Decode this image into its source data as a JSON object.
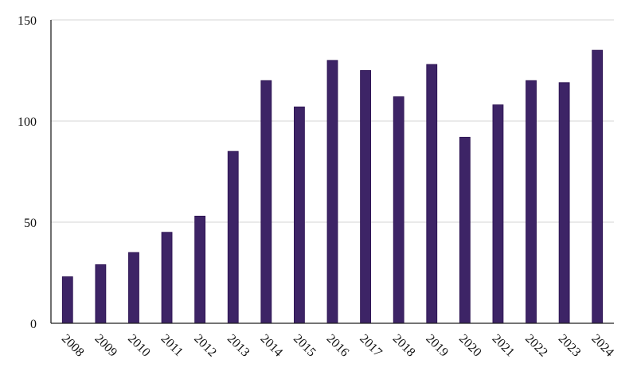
{
  "chart_data": {
    "type": "bar",
    "title": "",
    "xlabel": "",
    "ylabel": "",
    "categories": [
      "2008",
      "2009",
      "2010",
      "2011",
      "2012",
      "2013",
      "2014",
      "2015",
      "2016",
      "2017",
      "2018",
      "2019",
      "2020",
      "2021",
      "2022",
      "2023",
      "2024"
    ],
    "values": [
      23,
      29,
      35,
      45,
      53,
      85,
      120,
      107,
      130,
      125,
      112,
      128,
      92,
      108,
      120,
      119,
      135
    ],
    "ylim": [
      0,
      150
    ],
    "yticks": [
      0,
      50,
      100,
      150
    ],
    "grid": true,
    "legend": "none",
    "x_tick_rotation": "rotated diagonally",
    "colors": {
      "bar": "#3d2466",
      "grid": "#d4d4d4",
      "axis": "#222222"
    }
  }
}
